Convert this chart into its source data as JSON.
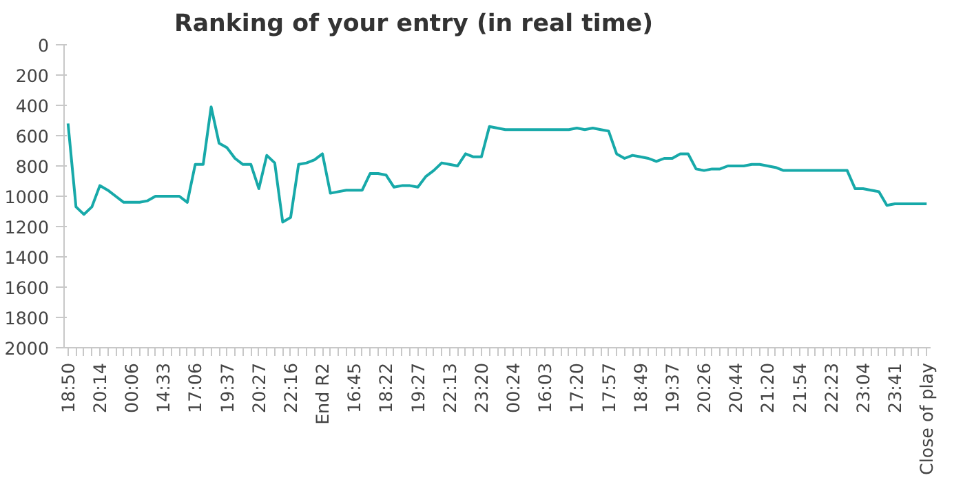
{
  "chart_data": {
    "type": "line",
    "title": "Ranking of your entry (in real time)",
    "categories": [
      "18:50",
      null,
      null,
      null,
      "20:14",
      null,
      null,
      null,
      "00:06",
      null,
      null,
      null,
      "14:33",
      null,
      null,
      null,
      "17:06",
      null,
      null,
      null,
      "19:37",
      null,
      null,
      null,
      "20:27",
      null,
      null,
      null,
      "22:16",
      null,
      null,
      null,
      "End R2",
      null,
      null,
      null,
      "16:45",
      null,
      null,
      null,
      "18:22",
      null,
      null,
      null,
      "19:27",
      null,
      null,
      null,
      "22:13",
      null,
      null,
      null,
      "23:20",
      null,
      null,
      null,
      "00:24",
      null,
      null,
      null,
      "16:03",
      null,
      null,
      null,
      "17:20",
      null,
      null,
      null,
      "17:57",
      null,
      null,
      null,
      "18:49",
      null,
      null,
      null,
      "19:37",
      null,
      null,
      null,
      "20:26",
      null,
      null,
      null,
      "20:44",
      null,
      null,
      null,
      "21:20",
      null,
      null,
      null,
      "21:54",
      null,
      null,
      null,
      "22:23",
      null,
      null,
      null,
      "23:04",
      null,
      null,
      null,
      "23:41",
      null,
      null,
      null,
      "Close of play"
    ],
    "series": [
      {
        "color": "#17a9a9",
        "values": [
          520,
          1070,
          1120,
          1070,
          930,
          960,
          1000,
          1040,
          1040,
          1040,
          1030,
          1000,
          1000,
          1000,
          1000,
          1040,
          790,
          790,
          410,
          650,
          680,
          750,
          790,
          790,
          950,
          730,
          780,
          1170,
          1140,
          790,
          780,
          760,
          720,
          980,
          970,
          960,
          960,
          960,
          850,
          850,
          860,
          940,
          930,
          930,
          940,
          870,
          830,
          780,
          790,
          800,
          720,
          740,
          740,
          540,
          550,
          560,
          560,
          560,
          560,
          560,
          560,
          560,
          560,
          560,
          550,
          560,
          550,
          560,
          570,
          720,
          750,
          730,
          740,
          750,
          770,
          750,
          750,
          720,
          720,
          820,
          830,
          820,
          820,
          800,
          800,
          800,
          790,
          790,
          800,
          810,
          830,
          830,
          830,
          830,
          830,
          830,
          830,
          830,
          830,
          950,
          950,
          960,
          970,
          1060,
          1050,
          1050,
          1050,
          1050,
          1050
        ]
      }
    ],
    "ylim": [
      2000,
      0
    ],
    "yticks": [
      0,
      200,
      400,
      600,
      800,
      1000,
      1200,
      1400,
      1600,
      1800,
      2000
    ],
    "grid": false,
    "line_style": "solid",
    "marker": "none"
  }
}
